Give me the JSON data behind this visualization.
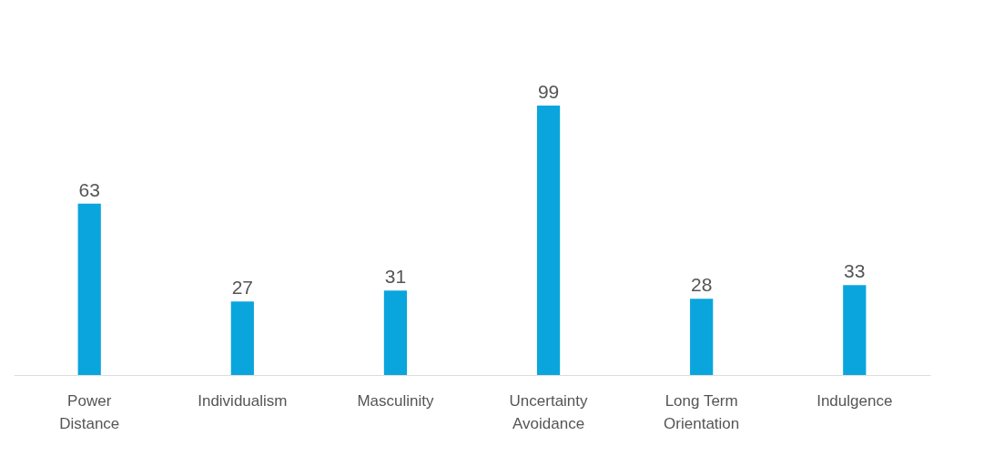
{
  "chart_data": {
    "type": "bar",
    "categories": [
      "Power Distance",
      "Individualism",
      "Masculinity",
      "Uncertainty Avoidance",
      "Long Term Orientation",
      "Indulgence"
    ],
    "values": [
      63,
      27,
      31,
      99,
      28,
      33
    ],
    "color": "#0aa5dd",
    "data_labels": true
  }
}
